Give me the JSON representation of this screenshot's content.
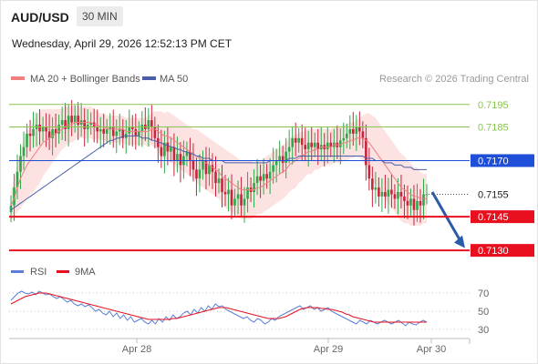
{
  "header": {
    "symbol": "AUD/USD",
    "timeframe": "30 MIN",
    "datetime": "Wednesday, April 29, 2026 12:52:13 PM CET"
  },
  "legend": {
    "ma20": "MA 20 + Bollinger Bands",
    "ma50": "MA 50",
    "copyright": "Research © 2026 Trading Central",
    "rsi": "RSI",
    "ma9": "9MA"
  },
  "colors": {
    "ma20": "#f08080",
    "band_fill": "#fde2e2",
    "ma50": "#4a5fa8",
    "up_candle": "#2ea84a",
    "down_candle": "#c8243c",
    "resistance": "#8ac44f",
    "pivot": "#1d4fd8",
    "support": "#e8101e",
    "last_price": "#262626",
    "arrow": "#2b5ba6",
    "rsi": "#5a7fd6",
    "rsi_ma": "#e8101e"
  },
  "chart_data": [
    {
      "type": "candlestick",
      "title": "AUD/USD",
      "timeframe": "30 MIN",
      "x_tick_labels": [
        "Apr 28",
        "Apr 29",
        "Apr 30"
      ],
      "ylim": [
        0.7126,
        0.7201
      ],
      "levels": [
        {
          "label": "0.7195",
          "value": 0.7195,
          "kind": "resistance"
        },
        {
          "label": "0.7185",
          "value": 0.7185,
          "kind": "resistance"
        },
        {
          "label": "0.7170",
          "value": 0.717,
          "kind": "pivot"
        },
        {
          "label": "0.7155",
          "value": 0.7155,
          "kind": "last"
        },
        {
          "label": "0.7145",
          "value": 0.7145,
          "kind": "support"
        },
        {
          "label": "0.7130",
          "value": 0.713,
          "kind": "support"
        }
      ],
      "close_series": [
        0.715,
        0.7158,
        0.7165,
        0.7172,
        0.7176,
        0.7182,
        0.7181,
        0.7184,
        0.7186,
        0.7183,
        0.7185,
        0.7183,
        0.718,
        0.7184,
        0.7182,
        0.7186,
        0.7188,
        0.7184,
        0.719,
        0.7187,
        0.719,
        0.7186,
        0.7188,
        0.7184,
        0.7186,
        0.7187,
        0.7185,
        0.7183,
        0.7184,
        0.7182,
        0.7184,
        0.7185,
        0.7181,
        0.7183,
        0.7184,
        0.718,
        0.7182,
        0.7185,
        0.7184,
        0.7181,
        0.7183,
        0.7186,
        0.7184,
        0.7188,
        0.7185,
        0.718,
        0.7176,
        0.7172,
        0.7178,
        0.7174,
        0.7176,
        0.717,
        0.7173,
        0.7168,
        0.7172,
        0.7174,
        0.717,
        0.7166,
        0.7162,
        0.7166,
        0.717,
        0.7164,
        0.7168,
        0.7165,
        0.716,
        0.7162,
        0.7156,
        0.7155,
        0.7157,
        0.715,
        0.7153,
        0.7155,
        0.715,
        0.7153,
        0.7158,
        0.7156,
        0.716,
        0.7163,
        0.7161,
        0.7164,
        0.7162,
        0.7165,
        0.7168,
        0.717,
        0.7172,
        0.7169,
        0.7174,
        0.7176,
        0.718,
        0.7178,
        0.718,
        0.7177,
        0.7175,
        0.7178,
        0.7176,
        0.7178,
        0.7175,
        0.7177,
        0.7175,
        0.7178,
        0.7176,
        0.7178,
        0.7176,
        0.7179,
        0.718,
        0.7182,
        0.7184,
        0.7182,
        0.7185,
        0.7183,
        0.718,
        0.7168,
        0.7162,
        0.7157,
        0.7158,
        0.7154,
        0.7156,
        0.7154,
        0.7157,
        0.7155,
        0.7153,
        0.7156,
        0.7154,
        0.7152,
        0.715,
        0.7153,
        0.7148,
        0.7152,
        0.715,
        0.7155,
        0.7155
      ],
      "ma20_series": [
        0.715,
        0.7153,
        0.7158,
        0.7162,
        0.7165,
        0.7168,
        0.717,
        0.7172,
        0.7174,
        0.7176,
        0.7178,
        0.7179,
        0.718,
        0.7181,
        0.7182,
        0.7183,
        0.7184,
        0.7185,
        0.7186,
        0.7186,
        0.7187,
        0.7187,
        0.7187,
        0.7187,
        0.7187,
        0.7187,
        0.7186,
        0.7186,
        0.7185,
        0.7185,
        0.7184,
        0.7184,
        0.7184,
        0.7184,
        0.7184,
        0.7184,
        0.7183,
        0.7183,
        0.7183,
        0.7183,
        0.7183,
        0.7183,
        0.7183,
        0.7183,
        0.7184,
        0.7184,
        0.7183,
        0.7182,
        0.7181,
        0.7181,
        0.718,
        0.7179,
        0.7178,
        0.7177,
        0.7176,
        0.7175,
        0.7174,
        0.7173,
        0.7172,
        0.7171,
        0.717,
        0.7169,
        0.7168,
        0.7167,
        0.7166,
        0.7165,
        0.7163,
        0.7162,
        0.7161,
        0.716,
        0.7159,
        0.7158,
        0.7157,
        0.7157,
        0.7157,
        0.7157,
        0.7157,
        0.7158,
        0.7158,
        0.7159,
        0.716,
        0.7161,
        0.7162,
        0.7163,
        0.7164,
        0.7165,
        0.7166,
        0.7168,
        0.7169,
        0.717,
        0.7171,
        0.7172,
        0.7173,
        0.7174,
        0.7174,
        0.7175,
        0.7175,
        0.7176,
        0.7176,
        0.7176,
        0.7176,
        0.7177,
        0.7177,
        0.7177,
        0.7178,
        0.7178,
        0.7179,
        0.7179,
        0.718,
        0.718,
        0.718,
        0.7179,
        0.7178,
        0.7176,
        0.7174,
        0.7172,
        0.717,
        0.7168,
        0.7166,
        0.7164,
        0.7162,
        0.716,
        0.7158,
        0.7157,
        0.7156,
        0.7155,
        0.7154,
        0.7154,
        0.7153,
        0.7153,
        0.7153
      ],
      "bb_width_series": [
        0.0006,
        0.0009,
        0.0011,
        0.0013,
        0.0014,
        0.0015,
        0.0015,
        0.0016,
        0.0016,
        0.0016,
        0.0015,
        0.0014,
        0.0013,
        0.0012,
        0.0011,
        0.001,
        0.0009,
        0.0009,
        0.0008,
        0.0008,
        0.0008,
        0.0007,
        0.0007,
        0.0007,
        0.0007,
        0.0007,
        0.0007,
        0.0006,
        0.0006,
        0.0006,
        0.0006,
        0.0006,
        0.0006,
        0.0006,
        0.0006,
        0.0006,
        0.0006,
        0.0006,
        0.0006,
        0.0006,
        0.0006,
        0.0006,
        0.0006,
        0.0007,
        0.0007,
        0.0008,
        0.0009,
        0.001,
        0.001,
        0.0011,
        0.0011,
        0.0011,
        0.0011,
        0.0011,
        0.0011,
        0.0011,
        0.0011,
        0.0011,
        0.0012,
        0.0012,
        0.0012,
        0.0012,
        0.0012,
        0.0012,
        0.0012,
        0.0012,
        0.0013,
        0.0013,
        0.0013,
        0.0013,
        0.0013,
        0.0013,
        0.0013,
        0.0013,
        0.0013,
        0.0013,
        0.0012,
        0.0012,
        0.0012,
        0.0012,
        0.0012,
        0.0012,
        0.0012,
        0.0012,
        0.0012,
        0.0012,
        0.0012,
        0.0012,
        0.0012,
        0.0012,
        0.0011,
        0.0011,
        0.001,
        0.001,
        0.001,
        0.0009,
        0.0009,
        0.0009,
        0.0008,
        0.0008,
        0.0008,
        0.0008,
        0.0008,
        0.0008,
        0.0008,
        0.0008,
        0.0008,
        0.0008,
        0.0008,
        0.0009,
        0.001,
        0.0012,
        0.0013,
        0.0014,
        0.0015,
        0.0015,
        0.0015,
        0.0015,
        0.0015,
        0.0015,
        0.0015,
        0.0015,
        0.0015,
        0.0015,
        0.0014,
        0.0014,
        0.0013,
        0.0013,
        0.0012,
        0.0011,
        0.0011
      ],
      "ma50_series": [
        0.7148,
        0.7149,
        0.715,
        0.7151,
        0.7152,
        0.7153,
        0.7154,
        0.7155,
        0.7156,
        0.7157,
        0.7158,
        0.7159,
        0.716,
        0.7161,
        0.7162,
        0.7163,
        0.7164,
        0.7165,
        0.7166,
        0.7167,
        0.7168,
        0.7169,
        0.717,
        0.7171,
        0.7172,
        0.7173,
        0.7174,
        0.7175,
        0.7176,
        0.7177,
        0.7178,
        0.7179,
        0.7179,
        0.718,
        0.718,
        0.7181,
        0.7181,
        0.7181,
        0.7181,
        0.7181,
        0.7181,
        0.718,
        0.718,
        0.718,
        0.7179,
        0.7179,
        0.7178,
        0.7178,
        0.7177,
        0.7177,
        0.7176,
        0.7176,
        0.7175,
        0.7175,
        0.7174,
        0.7174,
        0.7173,
        0.7173,
        0.7172,
        0.7172,
        0.7171,
        0.7171,
        0.7171,
        0.717,
        0.717,
        0.717,
        0.717,
        0.7169,
        0.7169,
        0.7169,
        0.7169,
        0.7169,
        0.7169,
        0.7169,
        0.7169,
        0.7169,
        0.7169,
        0.7169,
        0.7169,
        0.7169,
        0.7169,
        0.717,
        0.717,
        0.717,
        0.717,
        0.717,
        0.717,
        0.7171,
        0.7171,
        0.7171,
        0.7172,
        0.7172,
        0.7172,
        0.7172,
        0.7172,
        0.7172,
        0.7172,
        0.7172,
        0.7172,
        0.7172,
        0.7172,
        0.7172,
        0.7172,
        0.7172,
        0.7172,
        0.7172,
        0.7172,
        0.7172,
        0.7172,
        0.7172,
        0.7172,
        0.7171,
        0.7171,
        0.7171,
        0.717,
        0.717,
        0.717,
        0.7169,
        0.7169,
        0.7169,
        0.7168,
        0.7168,
        0.7168,
        0.7167,
        0.7167,
        0.7167,
        0.7166,
        0.7166,
        0.7166,
        0.7166,
        0.7166
      ]
    },
    {
      "type": "line",
      "title": "RSI",
      "series": [
        {
          "name": "RSI",
          "values": [
            62,
            66,
            70,
            72,
            70,
            69,
            71,
            68,
            72,
            70,
            68,
            69,
            66,
            64,
            66,
            63,
            60,
            62,
            58,
            56,
            58,
            55,
            57,
            54,
            50,
            52,
            48,
            46,
            50,
            44,
            48,
            42,
            46,
            40,
            44,
            38,
            40,
            42,
            38,
            36,
            40,
            36,
            42,
            38,
            44,
            40,
            46,
            42,
            44,
            48,
            50,
            46,
            52,
            48,
            54,
            50,
            56,
            52,
            58,
            55,
            56,
            52,
            50,
            48,
            46,
            44,
            42,
            44,
            40,
            38,
            42,
            40,
            36,
            38,
            42,
            40,
            44,
            46,
            48,
            50,
            52,
            54,
            56,
            52,
            54,
            56,
            52,
            54,
            50,
            52,
            54,
            50,
            48,
            46,
            44,
            42,
            40,
            38,
            36,
            40,
            38,
            36,
            40,
            38,
            36,
            38,
            40,
            38,
            36,
            38,
            40,
            37,
            34,
            38,
            36,
            35,
            38,
            40,
            38
          ],
          "color": "#5a7fd6"
        },
        {
          "name": "9MA",
          "values": [
            58,
            60,
            62,
            64,
            66,
            67,
            68,
            69,
            70,
            70,
            70,
            69,
            68,
            67,
            66,
            65,
            64,
            63,
            62,
            61,
            60,
            59,
            58,
            57,
            56,
            55,
            54,
            53,
            52,
            51,
            50,
            49,
            48,
            47,
            46,
            45,
            44,
            43,
            42,
            41,
            41,
            41,
            41,
            41,
            41,
            41,
            42,
            42,
            43,
            44,
            45,
            46,
            47,
            48,
            49,
            50,
            51,
            52,
            53,
            54,
            54,
            54,
            53,
            52,
            51,
            50,
            49,
            48,
            47,
            46,
            45,
            44,
            43,
            42,
            42,
            42,
            42,
            43,
            44,
            46,
            48,
            50,
            52,
            53,
            54,
            54,
            54,
            54,
            53,
            53,
            52,
            52,
            51,
            50,
            49,
            47,
            46,
            44,
            43,
            42,
            41,
            40,
            39,
            38,
            38,
            38,
            38,
            38,
            38,
            38,
            38,
            38,
            38,
            38,
            38,
            38,
            38,
            38,
            38
          ],
          "color": "#e8101e"
        }
      ],
      "ylim": [
        20,
        80
      ],
      "y_tick_labels": [
        "70",
        "50",
        "30"
      ],
      "y_ticks": [
        70,
        50,
        30
      ]
    }
  ]
}
